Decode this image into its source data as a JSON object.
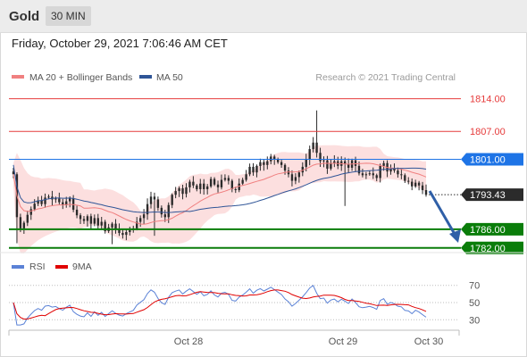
{
  "header": {
    "symbol": "Gold",
    "timeframe": "30 MIN"
  },
  "datetime": "Friday, October 29, 2021 7:06:46 AM CET",
  "legend": {
    "ma20": {
      "label": "MA 20 + Bollinger Bands",
      "color": "#f08080"
    },
    "ma50": {
      "label": "MA 50",
      "color": "#2f5597"
    }
  },
  "credit": "Research © 2021 Trading Central",
  "levels": [
    {
      "value": 1814.0,
      "label": "1814.00",
      "style": "resistance-line",
      "color": "#e63b3b"
    },
    {
      "value": 1807.0,
      "label": "1807.00",
      "style": "resistance-line",
      "color": "#e63b3b"
    },
    {
      "value": 1801.0,
      "label": "1801.00",
      "style": "pivot",
      "color": "#1e74e6"
    },
    {
      "value": 1793.43,
      "label": "1793.43",
      "style": "last-price",
      "color": "#2b2b2b"
    },
    {
      "value": 1786.0,
      "label": "1786.00",
      "style": "support",
      "color": "#0a7d0a"
    },
    {
      "value": 1782.0,
      "label": "1782.00",
      "style": "support",
      "color": "#0a7d0a"
    }
  ],
  "rsi_legend": {
    "rsi": {
      "label": "RSI",
      "color": "#5b82d6"
    },
    "ma9": {
      "label": "9MA",
      "color": "#e00000"
    }
  },
  "rsi_levels": [
    "70",
    "50",
    "30"
  ],
  "x_labels": [
    "Oct 28",
    "Oct 29",
    "Oct 30"
  ],
  "chart_data": {
    "type": "candlestick",
    "price_range": [
      1781,
      1817
    ],
    "rsi_range": [
      22,
      78
    ],
    "closes": [
      1797.8,
      1788.6,
      1786.2,
      1787.4,
      1789.1,
      1790.3,
      1791.5,
      1792.2,
      1791.4,
      1792.8,
      1793.0,
      1792.4,
      1792.6,
      1791.8,
      1791.2,
      1792.0,
      1792.6,
      1790.2,
      1789.0,
      1788.2,
      1787.8,
      1788.8,
      1787.2,
      1788.4,
      1786.8,
      1787.6,
      1785.6,
      1786.4,
      1787.2,
      1786.0,
      1785.2,
      1784.8,
      1785.4,
      1785.8,
      1786.2,
      1787.6,
      1788.4,
      1789.2,
      1791.4,
      1793.0,
      1792.4,
      1790.6,
      1789.2,
      1788.6,
      1791.2,
      1793.4,
      1794.2,
      1794.8,
      1793.6,
      1795.0,
      1796.2,
      1795.4,
      1794.6,
      1795.8,
      1794.6,
      1795.2,
      1796.8,
      1795.6,
      1795.0,
      1796.6,
      1797.0,
      1796.4,
      1794.6,
      1794.4,
      1795.8,
      1796.6,
      1797.8,
      1799.4,
      1798.2,
      1799.6,
      1800.4,
      1799.8,
      1800.6,
      1801.6,
      1801.0,
      1800.4,
      1799.8,
      1798.6,
      1797.8,
      1796.4,
      1797.2,
      1798.2,
      1799.4,
      1801.0,
      1803.2,
      1804.6,
      1802.4,
      1800.6,
      1800.8,
      1799.0,
      1800.2,
      1800.6,
      1799.6,
      1800.6,
      1800.0,
      1799.2,
      1800.8,
      1799.6,
      1798.0,
      1797.6,
      1797.8,
      1798.0,
      1797.6,
      1797.0,
      1799.6,
      1800.2,
      1798.4,
      1799.0,
      1798.6,
      1797.8,
      1797.6,
      1796.4,
      1796.2,
      1795.2,
      1796.0,
      1795.4,
      1794.4,
      1793.4
    ]
  }
}
